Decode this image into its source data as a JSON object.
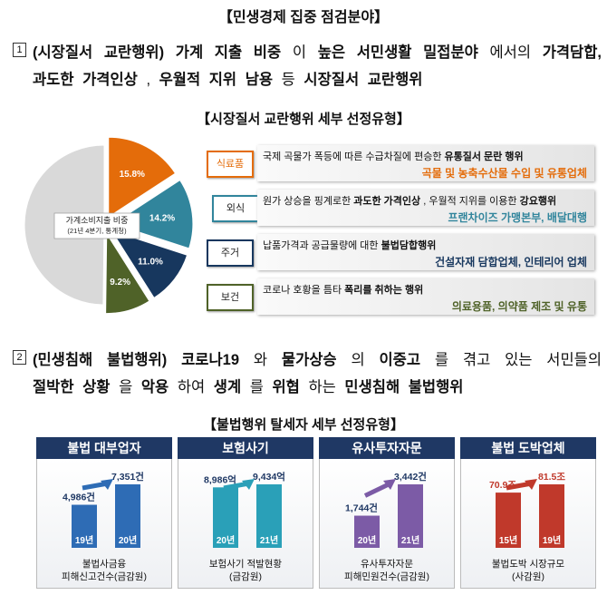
{
  "title": "【민생경제 집중 점검분야】",
  "section1": {
    "number": "1",
    "line1": [
      {
        "text": "(시장질서 교란행위)",
        "bold": true
      },
      {
        "text": " 가계 지출 비중",
        "bold": true
      },
      {
        "text": "이 ",
        "bold": false
      },
      {
        "text": "높은 서민생활 밀접분야",
        "bold": true
      },
      {
        "text": "에서의 ",
        "bold": false
      },
      {
        "text": "가격담합,",
        "bold": true
      }
    ],
    "line2": [
      {
        "text": "과도한 가격인상",
        "bold": true
      },
      {
        "text": ", ",
        "bold": false
      },
      {
        "text": "우월적 지위 남용",
        "bold": true
      },
      {
        "text": " 등 ",
        "bold": false
      },
      {
        "text": "시장질서 교란행위",
        "bold": true
      }
    ]
  },
  "subtitle1": "【시장질서 교란행위 세부 선정유형】",
  "pie": {
    "type": "pie",
    "values": [
      15.8,
      14.2,
      11.0,
      9.2,
      49.8
    ],
    "value_labels": [
      "15.8%",
      "14.2%",
      "11.0%",
      "9.2%",
      null
    ],
    "colors": [
      "#e46c0a",
      "#31859c",
      "#17375e",
      "#4f6228",
      "#d9d9d9"
    ],
    "center_label": [
      "가계소비지출 비중",
      "(21년 4분기, 통계청)"
    ]
  },
  "types": [
    {
      "label": "식료품",
      "color": "#e46c0a",
      "desc": [
        {
          "text": "국제 곡물가 폭등에 따른 수급차질에 편승한 ",
          "bold": false
        },
        {
          "text": "유통질서 문란 행위",
          "bold": true
        }
      ],
      "targets": "곡물 및 농축수산물 수입 및 유통업체"
    },
    {
      "label": "외식",
      "color": "#31859c",
      "desc": [
        {
          "text": "원가 상승을 핑계로한 ",
          "bold": false
        },
        {
          "text": "과도한 가격인상",
          "bold": true
        },
        {
          "text": ", 우월적 지위를 이용한 ",
          "bold": false
        },
        {
          "text": "강요행위",
          "bold": true
        }
      ],
      "targets": "프랜차이즈 가맹본부, 배달대행"
    },
    {
      "label": "주거",
      "color": "#17375e",
      "desc": [
        {
          "text": "납품가격과 공급물량에 대한 ",
          "bold": false
        },
        {
          "text": "불법담합행위",
          "bold": true
        }
      ],
      "targets": "건설자재 담합업체, 인테리어 업체"
    },
    {
      "label": "보건",
      "color": "#4f6228",
      "desc": [
        {
          "text": "코로나 호황을 틈타 ",
          "bold": false
        },
        {
          "text": "폭리를 취하는 행위",
          "bold": true
        }
      ],
      "targets": "의료용품, 의약품 제조 및 유통"
    }
  ],
  "section2": {
    "number": "2",
    "line1": [
      {
        "text": "(민생침해 불법행위)",
        "bold": true
      },
      {
        "text": " 코로나19",
        "bold": true
      },
      {
        "text": "와 ",
        "bold": false
      },
      {
        "text": "물가상승",
        "bold": true
      },
      {
        "text": "의 ",
        "bold": false
      },
      {
        "text": "이중고",
        "bold": true
      },
      {
        "text": "를 겪고 있는 서민들의",
        "bold": false
      }
    ],
    "line2": [
      {
        "text": "절박한 상황",
        "bold": true
      },
      {
        "text": "을 ",
        "bold": false
      },
      {
        "text": "악용",
        "bold": true
      },
      {
        "text": "하여 ",
        "bold": false
      },
      {
        "text": "생계",
        "bold": true
      },
      {
        "text": "를 ",
        "bold": false
      },
      {
        "text": "위협",
        "bold": true
      },
      {
        "text": "하는 ",
        "bold": false
      },
      {
        "text": "민생침해 불법행위",
        "bold": true
      }
    ]
  },
  "subtitle2": "【불법행위 탈세자 세부 선정유형】",
  "panels": [
    {
      "type": "bar",
      "title": "불법 대부업자",
      "color": "#2e6cb5",
      "categories": [
        "19년",
        "20년"
      ],
      "values": [
        4986,
        7351
      ],
      "value_labels": [
        "4,986건",
        "7,351건"
      ],
      "caption": [
        "불법사금융",
        "피해신고건수(금감원)"
      ]
    },
    {
      "type": "bar",
      "title": "보험사기",
      "color": "#2aa0b8",
      "categories": [
        "20년",
        "21년"
      ],
      "values": [
        8986,
        9434
      ],
      "value_labels": [
        "8,986억",
        "9,434억"
      ],
      "caption": [
        "보험사기 적발현황",
        "(금감원)"
      ]
    },
    {
      "type": "bar",
      "title": "유사투자자문",
      "color": "#7c5ba6",
      "categories": [
        "20년",
        "21년"
      ],
      "values": [
        1744,
        3442
      ],
      "value_labels": [
        "1,744건",
        "3,442건"
      ],
      "caption": [
        "유사투자자문",
        "피해민원건수(금감원)"
      ]
    },
    {
      "type": "bar",
      "title": "불법 도박업체",
      "color": "#c0392b",
      "categories": [
        "15년",
        "19년"
      ],
      "values": [
        70.9,
        81.5
      ],
      "value_labels": [
        "70.9조",
        "81.5조"
      ],
      "caption": [
        "불법도박 시장규모",
        "(사감원)"
      ]
    }
  ]
}
